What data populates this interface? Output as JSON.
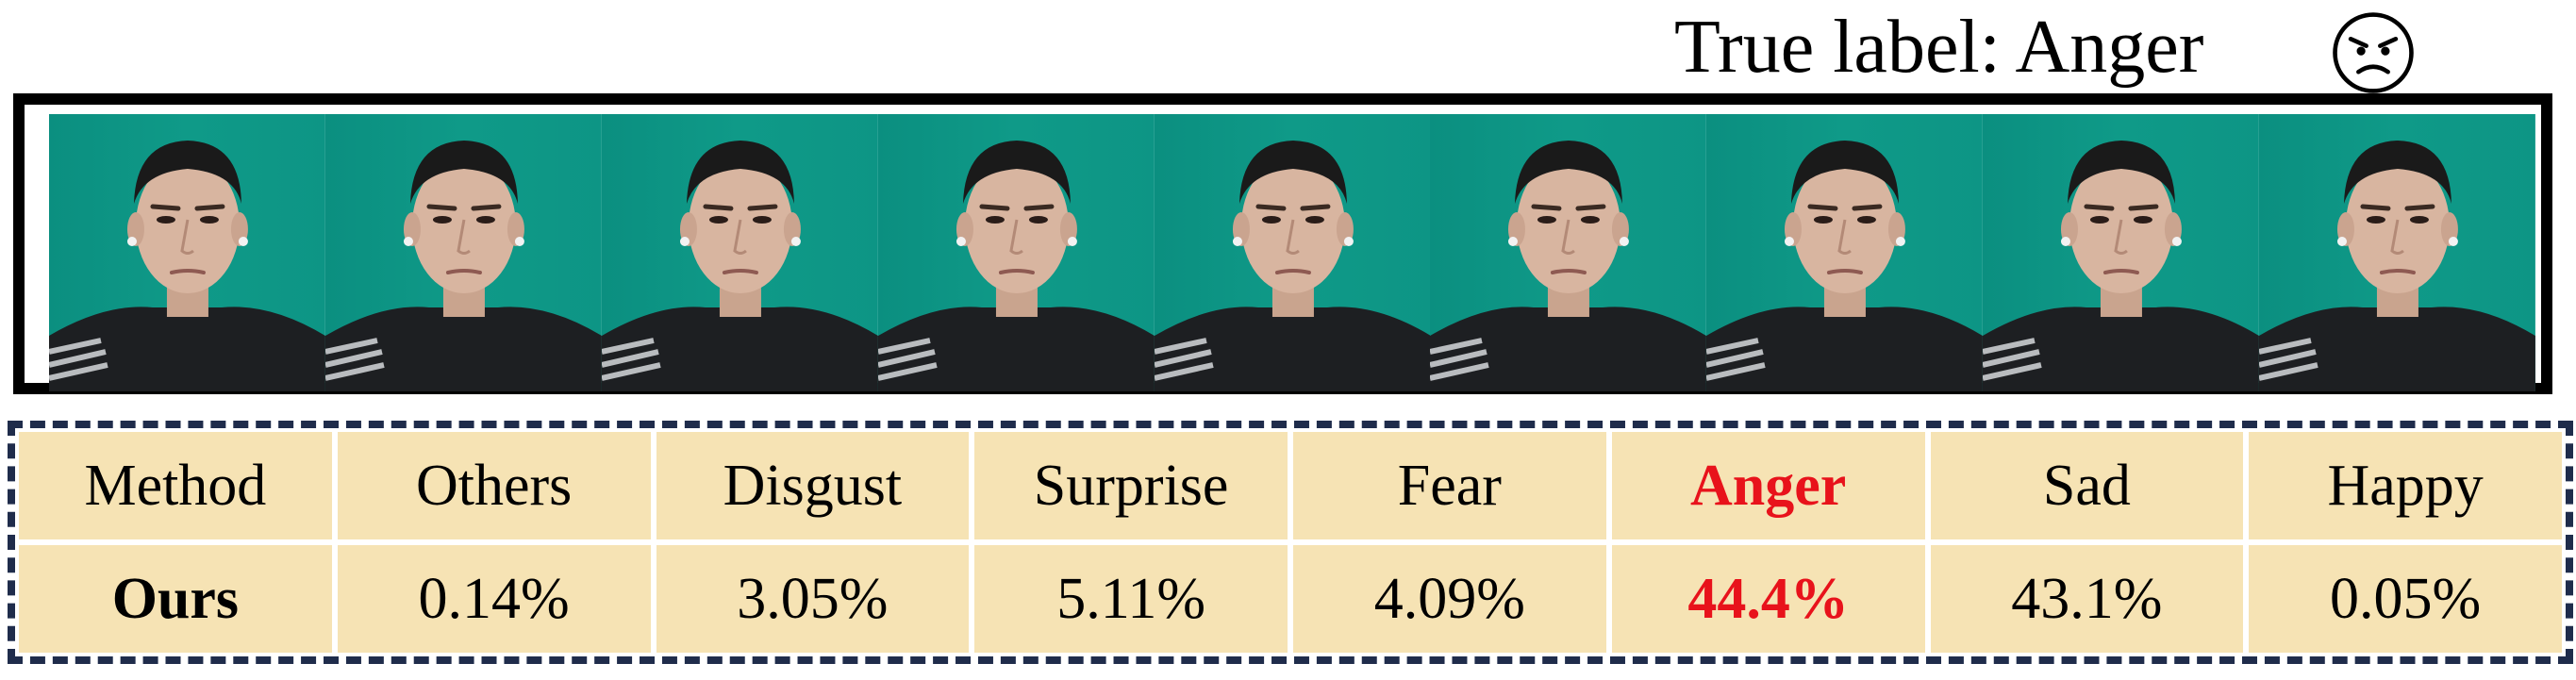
{
  "header": {
    "true_label": "True label: Anger",
    "emoji_icon": "angry-face-icon"
  },
  "frames": {
    "count": 9,
    "subject": "face"
  },
  "table": {
    "headers": [
      "Method",
      "Others",
      "Disgust",
      "Surprise",
      "Fear",
      "Anger",
      "Sad",
      "Happy"
    ],
    "rows": [
      [
        "Ours",
        "0.14%",
        "3.05%",
        "5.11%",
        "4.09%",
        "44.4%",
        "43.1%",
        "0.05%"
      ]
    ],
    "highlight_column": 5,
    "colors": {
      "cell_background": "#f6e3b4",
      "highlight_text": "#e8121b",
      "border_dashed": "#1f2c4b",
      "frame_background": "#0f9a88"
    }
  }
}
